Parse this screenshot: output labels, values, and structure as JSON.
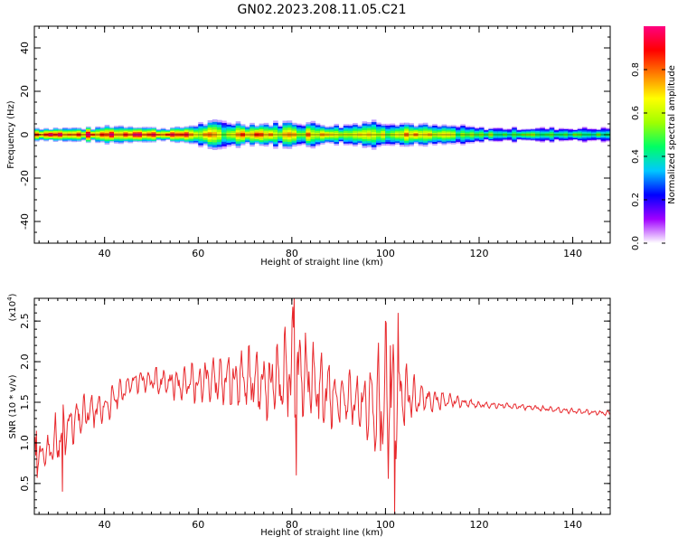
{
  "title": "GN02.2023.208.11.05.C21",
  "chart_data": [
    {
      "type": "heatmap",
      "xlabel": "Height of straight line (km)",
      "ylabel": "Frequency (Hz)",
      "xlim": [
        25,
        148
      ],
      "ylim": [
        -50,
        50
      ],
      "xticks": [
        40,
        60,
        80,
        100,
        120,
        140
      ],
      "yticks": [
        -40,
        -20,
        0,
        20,
        40
      ],
      "colorbar": {
        "label": "Normalized spectral amplitude",
        "range": [
          0,
          1
        ],
        "ticks": [
          "0.0",
          "0.2",
          "0.4",
          "0.6",
          "0.8"
        ],
        "colors": [
          "#ffffff",
          "#a000ff",
          "#0000ff",
          "#00c8ff",
          "#00ff64",
          "#a0ff00",
          "#ffff00",
          "#ff8000",
          "#ff0000",
          "#ff0080"
        ]
      },
      "band": {
        "center_hz": 0,
        "x": [
          25,
          30,
          35,
          38,
          40,
          43,
          46,
          50,
          55,
          60,
          65,
          70,
          75,
          80,
          85,
          90,
          95,
          100,
          105,
          110,
          115,
          120,
          130,
          140,
          148
        ],
        "half_width_hz": [
          3,
          3,
          3,
          3,
          4,
          4,
          4,
          3,
          3,
          5,
          6,
          5,
          5,
          6,
          5,
          4,
          6,
          6,
          5,
          4,
          4,
          3,
          3,
          3,
          3
        ],
        "core_amplitude": [
          0.85,
          0.9,
          0.9,
          0.85,
          0.9,
          0.8,
          0.85,
          0.9,
          0.9,
          0.7,
          0.6,
          0.75,
          0.7,
          0.65,
          0.75,
          0.75,
          0.6,
          0.6,
          0.7,
          0.6,
          0.55,
          0.5,
          0.5,
          0.5,
          0.5
        ]
      }
    },
    {
      "type": "line",
      "xlabel": "Height of straight line (km)",
      "ylabel": "SNR (10 * v/v)",
      "y_multiplier": "(x10",
      "y_multiplier_exp": "4",
      "y_multiplier_close": ")",
      "xlim": [
        25,
        148
      ],
      "ylim": [
        0.12,
        2.78
      ],
      "xticks": [
        40,
        60,
        80,
        100,
        120,
        140
      ],
      "yticks": [
        0.5,
        1.0,
        1.5,
        2.0,
        2.5
      ],
      "ytick_labels": [
        "0.5",
        "1.0",
        "1.5",
        "2.0",
        "2.5"
      ],
      "series": [
        {
          "color": "#e8292d",
          "envelope_x": [
            25,
            27,
            30,
            33,
            36,
            40,
            43,
            46,
            50,
            55,
            60,
            65,
            70,
            75,
            80,
            85,
            90,
            95,
            100,
            103,
            106,
            110,
            115,
            120,
            125,
            130,
            140,
            148
          ],
          "envelope_lower": [
            0.5,
            0.7,
            0.6,
            0.9,
            1.1,
            1.2,
            1.4,
            1.6,
            1.6,
            1.5,
            1.45,
            1.4,
            1.3,
            1.2,
            1.0,
            1.05,
            1.1,
            1.1,
            0.2,
            1.0,
            1.25,
            1.35,
            1.42,
            1.42,
            1.42,
            1.4,
            1.35,
            1.33
          ],
          "envelope_upper": [
            1.15,
            1.0,
            1.45,
            1.6,
            1.65,
            1.65,
            1.8,
            1.9,
            1.95,
            1.95,
            2.05,
            2.15,
            2.3,
            2.2,
            2.78,
            2.3,
            2.0,
            1.9,
            2.6,
            2.2,
            1.85,
            1.7,
            1.6,
            1.52,
            1.5,
            1.48,
            1.43,
            1.4
          ],
          "spikes": [
            {
              "x": 80.5,
              "y": 2.78
            },
            {
              "x": 81,
              "y": 0.6
            },
            {
              "x": 99,
              "y": 0.9
            },
            {
              "x": 101,
              "y": 2.2
            },
            {
              "x": 102,
              "y": 0.12
            },
            {
              "x": 102.7,
              "y": 2.6
            },
            {
              "x": 31,
              "y": 0.4
            },
            {
              "x": 25.5,
              "y": 1.15
            }
          ]
        }
      ]
    }
  ]
}
